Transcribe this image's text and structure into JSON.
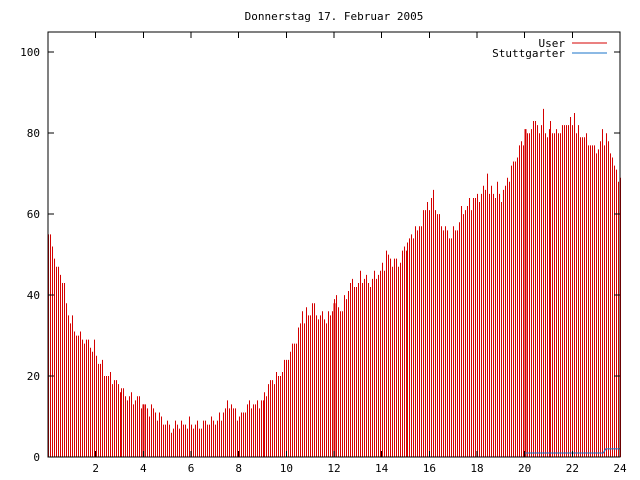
{
  "chart_data": {
    "type": "bar",
    "title": "Donnerstag 17. Februar 2005",
    "xlabel": "",
    "ylabel": "",
    "xlim": [
      0,
      24
    ],
    "ylim": [
      0,
      105
    ],
    "x_ticks": [
      2,
      4,
      6,
      8,
      10,
      12,
      14,
      16,
      18,
      20,
      22,
      24
    ],
    "x_tick_labels": [
      "2",
      "4",
      "6",
      "8",
      "10",
      "12",
      "14",
      "16",
      "18",
      "20",
      "22",
      "24"
    ],
    "y_ticks": [
      0,
      20,
      40,
      60,
      80,
      100
    ],
    "y_tick_labels": [
      "0",
      "20",
      "40",
      "60",
      "80",
      "100"
    ],
    "grid": false,
    "legend_position": "top-right",
    "colors": {
      "user": "#d40000",
      "stuttgarter": "#1a73c8"
    },
    "bin_minutes": 5,
    "series": [
      {
        "name": "User",
        "style": "impulses",
        "anchors": [
          [
            0.0,
            55
          ],
          [
            0.08,
            54
          ],
          [
            0.17,
            52
          ],
          [
            0.25,
            50
          ],
          [
            0.33,
            46
          ],
          [
            0.42,
            47
          ],
          [
            0.5,
            45
          ],
          [
            0.58,
            44
          ],
          [
            0.67,
            41
          ],
          [
            0.75,
            38
          ],
          [
            0.83,
            36
          ],
          [
            0.92,
            34
          ],
          [
            1.0,
            33
          ],
          [
            1.17,
            31
          ],
          [
            1.33,
            30
          ],
          [
            1.5,
            29
          ],
          [
            1.67,
            28
          ],
          [
            1.83,
            27
          ],
          [
            2.0,
            25
          ],
          [
            2.17,
            23
          ],
          [
            2.33,
            21
          ],
          [
            2.5,
            20
          ],
          [
            2.67,
            19
          ],
          [
            2.83,
            18
          ],
          [
            3.0,
            17
          ],
          [
            3.17,
            16
          ],
          [
            3.33,
            15
          ],
          [
            3.5,
            15
          ],
          [
            3.67,
            14
          ],
          [
            3.83,
            14
          ],
          [
            4.0,
            13
          ],
          [
            4.17,
            12
          ],
          [
            4.33,
            12
          ],
          [
            4.5,
            11
          ],
          [
            4.67,
            10
          ],
          [
            4.83,
            9
          ],
          [
            5.0,
            8
          ],
          [
            5.17,
            7
          ],
          [
            5.33,
            8
          ],
          [
            5.5,
            8
          ],
          [
            6.0,
            8
          ],
          [
            6.5,
            8
          ],
          [
            7.0,
            9
          ],
          [
            7.25,
            10
          ],
          [
            7.5,
            13
          ],
          [
            7.67,
            13
          ],
          [
            7.83,
            11
          ],
          [
            8.0,
            10
          ],
          [
            8.17,
            11
          ],
          [
            8.33,
            13
          ],
          [
            8.5,
            13
          ],
          [
            8.67,
            13
          ],
          [
            9.0,
            14
          ],
          [
            9.17,
            17
          ],
          [
            9.33,
            18
          ],
          [
            9.5,
            19
          ],
          [
            9.67,
            20
          ],
          [
            9.83,
            22
          ],
          [
            10.0,
            24
          ],
          [
            10.17,
            26
          ],
          [
            10.33,
            28
          ],
          [
            10.5,
            31
          ],
          [
            10.67,
            34
          ],
          [
            10.83,
            35
          ],
          [
            11.0,
            36
          ],
          [
            11.17,
            36
          ],
          [
            11.33,
            35
          ],
          [
            11.5,
            35
          ],
          [
            11.67,
            34
          ],
          [
            11.83,
            35
          ],
          [
            12.0,
            38
          ],
          [
            12.17,
            38
          ],
          [
            12.33,
            36
          ],
          [
            12.5,
            40
          ],
          [
            12.67,
            43
          ],
          [
            12.83,
            43
          ],
          [
            13.0,
            42
          ],
          [
            13.17,
            44
          ],
          [
            13.33,
            44
          ],
          [
            13.5,
            43
          ],
          [
            13.67,
            45
          ],
          [
            13.83,
            45
          ],
          [
            14.0,
            47
          ],
          [
            14.17,
            49
          ],
          [
            14.33,
            49
          ],
          [
            14.5,
            48
          ],
          [
            14.67,
            48
          ],
          [
            14.83,
            50
          ],
          [
            15.0,
            52
          ],
          [
            15.17,
            53
          ],
          [
            15.33,
            56
          ],
          [
            15.5,
            56
          ],
          [
            15.67,
            58
          ],
          [
            15.83,
            61
          ],
          [
            16.0,
            62
          ],
          [
            16.17,
            63
          ],
          [
            16.33,
            60
          ],
          [
            16.5,
            58
          ],
          [
            16.67,
            56
          ],
          [
            16.83,
            55
          ],
          [
            17.0,
            55
          ],
          [
            17.17,
            57
          ],
          [
            17.33,
            60
          ],
          [
            17.5,
            61
          ],
          [
            17.67,
            63
          ],
          [
            17.83,
            62
          ],
          [
            18.0,
            64
          ],
          [
            18.17,
            65
          ],
          [
            18.33,
            66
          ],
          [
            18.5,
            65
          ],
          [
            18.67,
            66
          ],
          [
            18.83,
            63
          ],
          [
            19.0,
            65
          ],
          [
            19.17,
            67
          ],
          [
            19.33,
            70
          ],
          [
            19.5,
            72
          ],
          [
            19.67,
            75
          ],
          [
            19.83,
            77
          ],
          [
            20.0,
            79
          ],
          [
            20.17,
            80
          ],
          [
            20.33,
            82
          ],
          [
            20.5,
            82
          ],
          [
            20.67,
            81
          ],
          [
            20.83,
            80
          ],
          [
            21.0,
            80
          ],
          [
            21.17,
            81
          ],
          [
            21.33,
            80
          ],
          [
            21.5,
            81
          ],
          [
            21.67,
            82
          ],
          [
            21.83,
            83
          ],
          [
            22.0,
            82
          ],
          [
            22.17,
            81
          ],
          [
            22.33,
            80
          ],
          [
            22.5,
            79
          ],
          [
            22.67,
            78
          ],
          [
            22.83,
            77
          ],
          [
            23.0,
            76
          ],
          [
            23.17,
            77
          ],
          [
            23.33,
            78
          ],
          [
            23.5,
            77
          ],
          [
            23.67,
            74
          ],
          [
            23.83,
            70
          ],
          [
            24.0,
            69
          ]
        ],
        "spikes": [
          [
            0.0,
            55
          ],
          [
            0.42,
            47
          ],
          [
            1.92,
            29
          ],
          [
            5.25,
            7
          ],
          [
            10.67,
            36
          ],
          [
            11.08,
            38
          ],
          [
            12.0,
            39
          ],
          [
            13.08,
            46
          ],
          [
            14.17,
            51
          ],
          [
            15.92,
            63
          ],
          [
            16.17,
            66
          ],
          [
            17.83,
            64
          ],
          [
            18.42,
            70
          ],
          [
            18.83,
            68
          ],
          [
            20.25,
            81
          ],
          [
            20.75,
            86
          ],
          [
            21.08,
            83
          ],
          [
            21.67,
            82
          ],
          [
            21.92,
            84
          ],
          [
            22.08,
            85
          ],
          [
            23.25,
            81
          ],
          [
            23.42,
            80
          ]
        ],
        "emphasis": [
          [
            4.0,
            13
          ],
          [
            12.0,
            38
          ],
          [
            20.0,
            81
          ]
        ]
      },
      {
        "name": "Stuttgarter",
        "style": "line",
        "values": [
          [
            0,
            0
          ],
          [
            20,
            0
          ],
          [
            20,
            1
          ],
          [
            23.3,
            1
          ],
          [
            23.4,
            2
          ],
          [
            24,
            2
          ]
        ]
      }
    ]
  }
}
